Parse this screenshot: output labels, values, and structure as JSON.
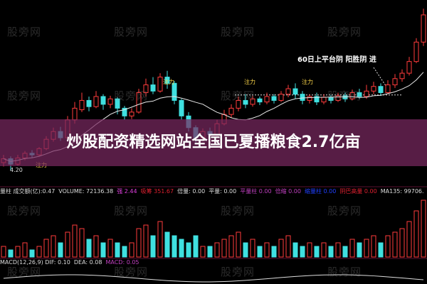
{
  "banner": {
    "title": "炒股配资精选网站全国已夏播粮食2.7亿亩"
  },
  "watermark": "股旁网",
  "annotation": "60日上平台阴 阳胜阴  进",
  "zhuli_label": "注力",
  "low_label": "4.20",
  "volume_panel": {
    "items": [
      {
        "text": "量柱 成交额(亿):0.47",
        "color": "#dddddd"
      },
      {
        "text": "VOLUME: 72136.38",
        "color": "#dddddd"
      },
      {
        "text": "强 2.44",
        "color": "#e040e0"
      },
      {
        "text": "吸筹 351.67",
        "color": "#e02030"
      },
      {
        "text": "倍量: 0.00",
        "color": "#dddddd"
      },
      {
        "text": "平量: 0.00",
        "color": "#dddddd"
      },
      {
        "text": "平量柱 0.00",
        "color": "#c040c0"
      },
      {
        "text": "倍缩 0.00",
        "color": "#c040c0"
      },
      {
        "text": "缩量柱 0.00",
        "color": "#2040ff"
      },
      {
        "text": "阴巴高量 0.00",
        "color": "#e02030"
      },
      {
        "text": "MA135: 99706.",
        "color": "#dddddd"
      }
    ]
  },
  "macd_panel": {
    "items": [
      {
        "text": "MACD(12,26,9) DIF: 0.10",
        "color": "#dddddd"
      },
      {
        "text": "DEA: 0.08",
        "color": "#dddddd"
      },
      {
        "text": "MACD: 0.05",
        "color": "#c040c0"
      }
    ]
  },
  "colors": {
    "up": "#ff3b3b",
    "down": "#3fe0e0",
    "ma": "#e8e8e8",
    "banner": "#782860"
  },
  "chart_data": {
    "type": "candlestick",
    "title": "",
    "ylim": [
      4.0,
      6.3
    ],
    "candles": [
      [
        4.3,
        4.35,
        4.4,
        4.25
      ],
      [
        4.35,
        4.28,
        4.38,
        4.2
      ],
      [
        4.28,
        4.36,
        4.4,
        4.26
      ],
      [
        4.36,
        4.42,
        4.45,
        4.33
      ],
      [
        4.42,
        4.4,
        4.46,
        4.36
      ],
      [
        4.4,
        4.48,
        4.5,
        4.38
      ],
      [
        4.48,
        4.6,
        4.64,
        4.46
      ],
      [
        4.6,
        4.7,
        4.75,
        4.57
      ],
      [
        4.7,
        4.62,
        4.76,
        4.58
      ],
      [
        4.62,
        4.85,
        4.9,
        4.6
      ],
      [
        4.85,
        5.0,
        5.08,
        4.8
      ],
      [
        4.98,
        5.1,
        5.2,
        4.95
      ],
      [
        5.1,
        5.02,
        5.15,
        4.96
      ],
      [
        5.02,
        5.15,
        5.22,
        5.0
      ],
      [
        5.15,
        5.05,
        5.18,
        4.98
      ],
      [
        5.05,
        5.12,
        5.16,
        5.0
      ],
      [
        5.12,
        5.0,
        5.14,
        4.92
      ],
      [
        5.0,
        4.9,
        5.03,
        4.85
      ],
      [
        4.9,
        4.95,
        5.0,
        4.86
      ],
      [
        4.95,
        5.2,
        5.25,
        4.93
      ],
      [
        5.2,
        5.3,
        5.38,
        5.15
      ],
      [
        5.3,
        5.22,
        5.4,
        5.18
      ],
      [
        5.22,
        5.4,
        5.45,
        5.2
      ],
      [
        5.4,
        5.32,
        5.48,
        5.25
      ],
      [
        5.32,
        5.1,
        5.35,
        5.05
      ],
      [
        5.1,
        4.9,
        5.12,
        4.85
      ],
      [
        4.9,
        4.75,
        4.95,
        4.7
      ],
      [
        4.75,
        4.62,
        4.78,
        4.55
      ],
      [
        4.62,
        4.7,
        4.74,
        4.58
      ],
      [
        4.7,
        4.66,
        4.75,
        4.62
      ],
      [
        4.66,
        4.8,
        4.85,
        4.64
      ],
      [
        4.8,
        4.92,
        4.98,
        4.78
      ],
      [
        4.92,
        5.0,
        5.05,
        4.88
      ],
      [
        5.0,
        5.1,
        5.15,
        4.96
      ],
      [
        5.1,
        5.05,
        5.18,
        5.0
      ],
      [
        5.05,
        5.12,
        5.16,
        5.02
      ],
      [
        5.12,
        5.08,
        5.15,
        5.04
      ],
      [
        5.08,
        5.15,
        5.2,
        5.05
      ],
      [
        5.15,
        5.1,
        5.18,
        5.06
      ],
      [
        5.1,
        5.18,
        5.22,
        5.08
      ],
      [
        5.18,
        5.25,
        5.3,
        5.14
      ],
      [
        5.25,
        5.18,
        5.32,
        5.12
      ],
      [
        5.18,
        5.1,
        5.22,
        5.05
      ],
      [
        5.1,
        5.15,
        5.18,
        5.06
      ],
      [
        5.15,
        5.08,
        5.2,
        5.04
      ],
      [
        5.08,
        5.14,
        5.18,
        5.05
      ],
      [
        5.14,
        5.1,
        5.17,
        5.06
      ],
      [
        5.1,
        5.16,
        5.2,
        5.08
      ],
      [
        5.16,
        5.12,
        5.2,
        5.08
      ],
      [
        5.12,
        5.2,
        5.24,
        5.1
      ],
      [
        5.2,
        5.15,
        5.25,
        5.12
      ],
      [
        5.15,
        5.22,
        5.3,
        5.12
      ],
      [
        5.22,
        5.28,
        5.34,
        5.18
      ],
      [
        5.28,
        5.2,
        5.32,
        5.16
      ],
      [
        5.2,
        5.3,
        5.36,
        5.18
      ],
      [
        5.3,
        5.38,
        5.44,
        5.26
      ],
      [
        5.38,
        5.45,
        5.5,
        5.34
      ],
      [
        5.45,
        5.6,
        5.66,
        5.42
      ],
      [
        5.6,
        5.85,
        5.9,
        5.58
      ],
      [
        5.85,
        6.2,
        6.28,
        5.8
      ]
    ],
    "volumes": [
      3,
      2,
      3,
      4,
      2,
      3,
      5,
      6,
      4,
      7,
      9,
      8,
      5,
      6,
      4,
      5,
      4,
      3,
      4,
      8,
      9,
      6,
      10,
      7,
      6,
      5,
      4,
      6,
      3,
      3,
      4,
      5,
      6,
      7,
      4,
      5,
      3,
      4,
      3,
      5,
      6,
      4,
      3,
      4,
      3,
      4,
      3,
      4,
      3,
      5,
      4,
      5,
      6,
      4,
      6,
      7,
      8,
      10,
      13,
      16
    ],
    "platform_level": 5.17
  }
}
